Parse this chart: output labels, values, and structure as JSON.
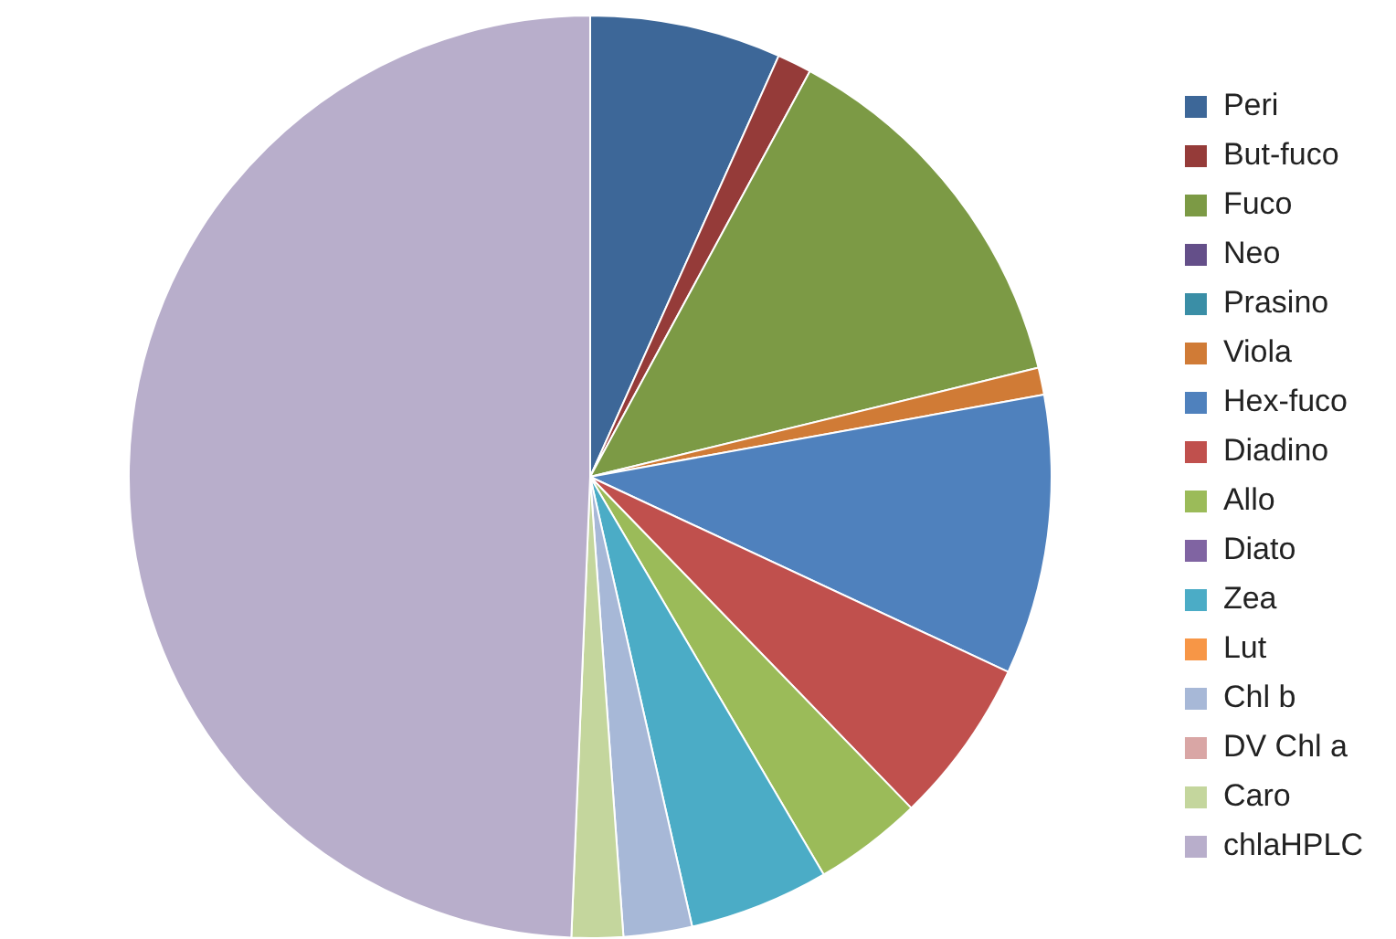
{
  "chart_data": {
    "type": "pie",
    "legend": "right",
    "categories": [
      "Peri",
      "But-fuco",
      "Fuco",
      "Neo",
      "Prasino",
      "Viola",
      "Hex-fuco",
      "Diadino",
      "Allo",
      "Diato",
      "Zea",
      "Lut",
      "Chl b",
      "DV Chl a",
      "Caro",
      "chlaHPLC"
    ],
    "values": [
      6.7,
      1.2,
      13.3,
      0,
      0,
      0.95,
      9.8,
      5.8,
      3.8,
      0,
      4.9,
      0,
      2.4,
      0,
      1.8,
      49.35
    ],
    "colors": [
      "#3d6798",
      "#953b39",
      "#7c9a45",
      "#644f89",
      "#3a8ea6",
      "#d07b36",
      "#4f81bd",
      "#c0504d",
      "#9bbb59",
      "#8064a2",
      "#4bacc6",
      "#f79646",
      "#a7b8d7",
      "#d9a6a5",
      "#c4d69d",
      "#b8aecb"
    ]
  }
}
